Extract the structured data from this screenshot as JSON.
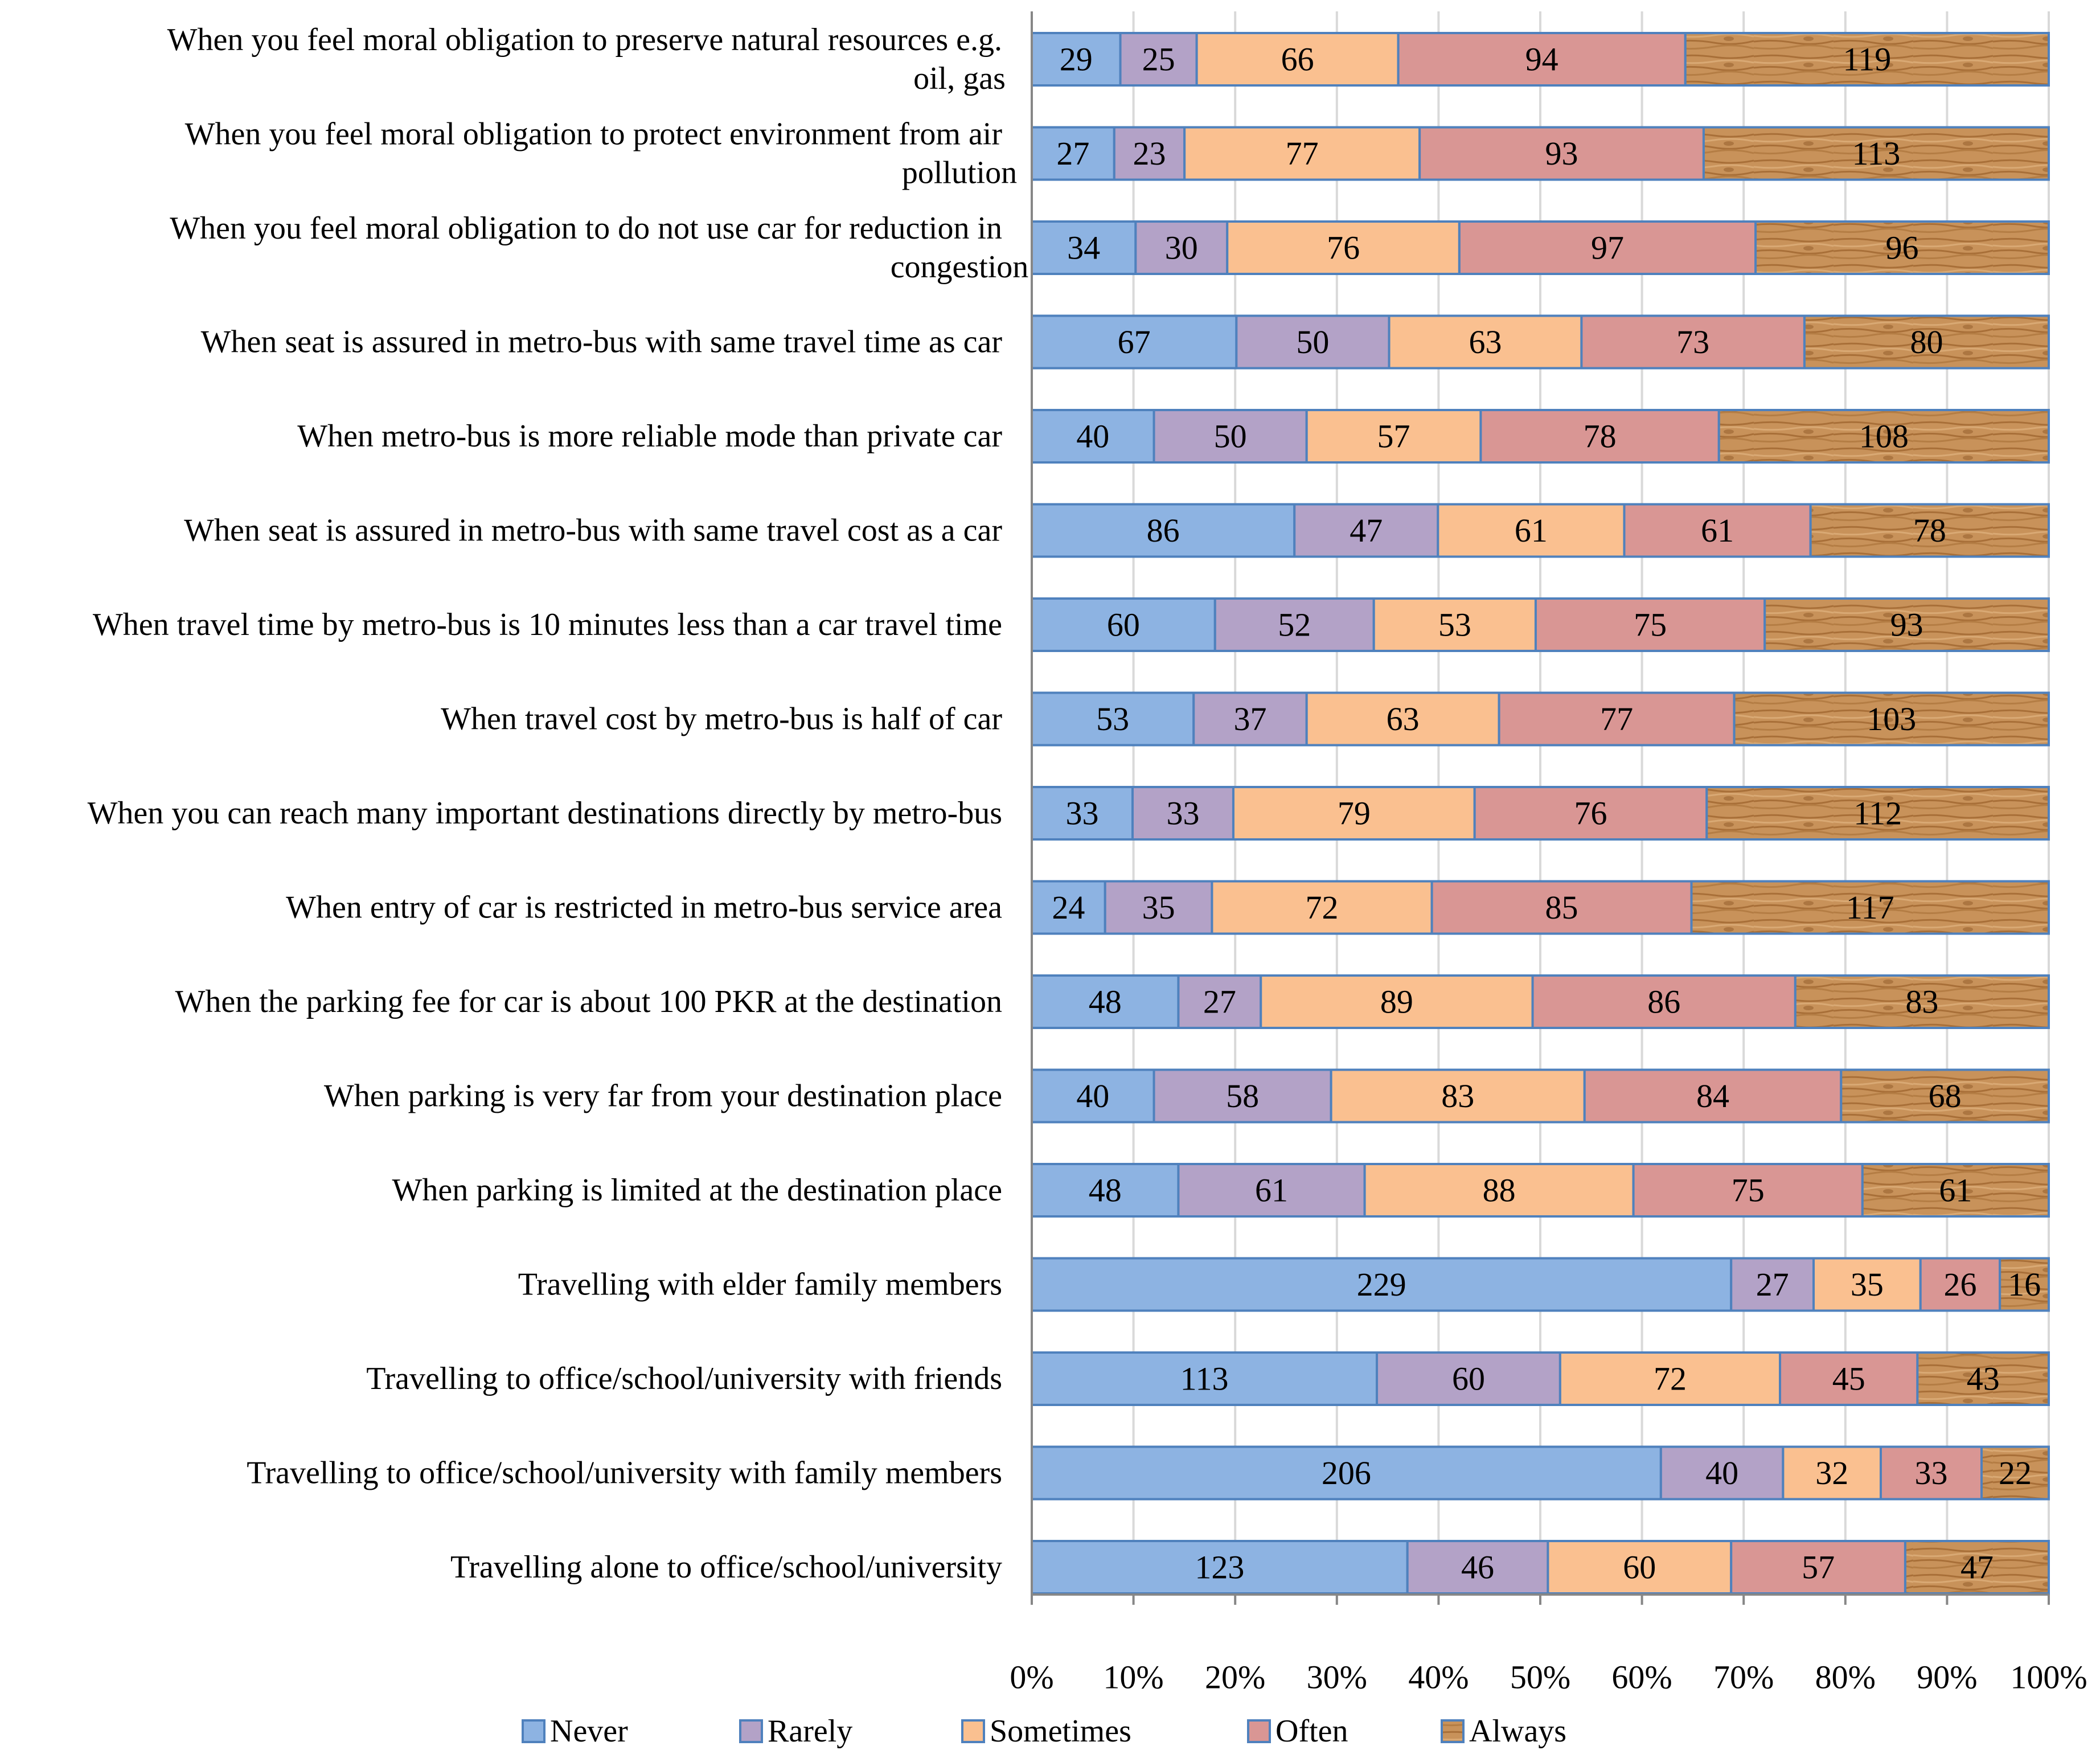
{
  "chart_data": {
    "type": "bar",
    "orientation": "horizontal",
    "stacking": "percent",
    "title": "",
    "xlabel": "",
    "ylabel": "",
    "xlim": [
      0,
      100
    ],
    "x_ticks": [
      "0%",
      "10%",
      "20%",
      "30%",
      "40%",
      "50%",
      "60%",
      "70%",
      "80%",
      "90%",
      "100%"
    ],
    "legend_position": "bottom",
    "categories": [
      [
        "When you feel moral obligation to preserve natural resources e.g.",
        "oil, gas"
      ],
      [
        "When you feel moral obligation to protect environment from air",
        "pollution"
      ],
      [
        "When you feel moral obligation to do not use car for reduction in",
        "congestion"
      ],
      [
        "When seat is assured in metro-bus with same travel time as car"
      ],
      [
        "When metro-bus is more reliable mode than private car"
      ],
      [
        "When seat is assured in metro-bus with same travel cost as a car"
      ],
      [
        "When travel time by metro-bus is 10 minutes less than a car travel time"
      ],
      [
        "When travel cost by metro-bus is half of car"
      ],
      [
        "When you can reach many important destinations directly by metro-bus"
      ],
      [
        "When entry of car is restricted in metro-bus service area"
      ],
      [
        "When the parking fee for car is about 100 PKR at the destination"
      ],
      [
        "When parking is very far from your destination place"
      ],
      [
        "When parking is limited at the destination place"
      ],
      [
        "Travelling with elder family members"
      ],
      [
        "Travelling to office/school/university with friends"
      ],
      [
        "Travelling to office/school/university with family members"
      ],
      [
        "Travelling alone to office/school/university"
      ]
    ],
    "series": [
      {
        "name": "Never",
        "color": "#8DB3E2",
        "border": "#4F81BD",
        "values": [
          29,
          27,
          34,
          67,
          40,
          86,
          60,
          53,
          33,
          24,
          48,
          40,
          48,
          229,
          113,
          206,
          123
        ]
      },
      {
        "name": "Rarely",
        "color": "#B3A2C7",
        "border": "#4F81BD",
        "values": [
          25,
          23,
          30,
          50,
          50,
          47,
          52,
          37,
          33,
          35,
          27,
          58,
          61,
          27,
          60,
          40,
          46
        ]
      },
      {
        "name": "Sometimes",
        "color": "#FAC090",
        "border": "#4F81BD",
        "values": [
          66,
          77,
          76,
          63,
          57,
          61,
          53,
          63,
          79,
          72,
          89,
          83,
          88,
          35,
          72,
          32,
          60
        ]
      },
      {
        "name": "Often",
        "color": "#D99694",
        "border": "#4F81BD",
        "values": [
          94,
          93,
          97,
          73,
          78,
          61,
          75,
          77,
          76,
          85,
          86,
          84,
          75,
          26,
          45,
          33,
          57
        ]
      },
      {
        "name": "Always",
        "color": "#C8925A",
        "border": "#4F81BD",
        "pattern": "wood-texture",
        "values": [
          119,
          113,
          96,
          80,
          108,
          78,
          93,
          103,
          112,
          117,
          83,
          68,
          61,
          16,
          43,
          22,
          47
        ]
      }
    ]
  }
}
